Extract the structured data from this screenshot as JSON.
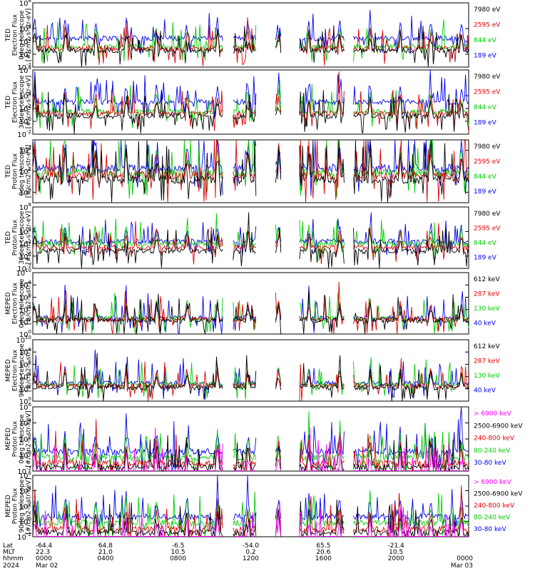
{
  "chart_data": [
    {
      "type": "line",
      "ylabel": [
        "TED",
        "Electron Flux",
        "0deg telescope",
        "[#/cm2-s-str-eV]"
      ],
      "y_ticks": [
        {
          "base": "10",
          "exp": "8"
        },
        {
          "base": "10",
          "exp": "4"
        },
        {
          "base": "10",
          "exp": "2"
        },
        {
          "base": "10",
          "exp": "0"
        },
        {
          "base": "10",
          "exp": "-2"
        }
      ],
      "ylim_log10": [
        -2,
        8
      ],
      "log_scale": true,
      "series": [
        {
          "name": "7980 eV",
          "color": "#000000",
          "level": 0.6
        },
        {
          "name": "2595 eV",
          "color": "#dd0000",
          "level": 0.9
        },
        {
          "name": "844 eV",
          "color": "#00cc00",
          "level": 1.2
        },
        {
          "name": "189 eV",
          "color": "#0000ee",
          "level": 2.5
        }
      ]
    },
    {
      "type": "line",
      "ylabel": [
        "TED",
        "Electron Flux",
        "30deg telescope",
        "[#/cm2-s-str-eV]"
      ],
      "y_ticks": [
        {
          "base": "10",
          "exp": "8"
        },
        {
          "base": "10",
          "exp": "4"
        },
        {
          "base": "10",
          "exp": "2"
        },
        {
          "base": "10",
          "exp": "0"
        },
        {
          "base": "10",
          "exp": "-2"
        }
      ],
      "ylim_log10": [
        -2,
        8
      ],
      "log_scale": true,
      "series": [
        {
          "name": "7980 eV",
          "color": "#000000",
          "level": 0.8
        },
        {
          "name": "2595 eV",
          "color": "#dd0000",
          "level": 1.2
        },
        {
          "name": "844 eV",
          "color": "#00cc00",
          "level": 1.5
        },
        {
          "name": "189 eV",
          "color": "#0000ee",
          "level": 3.0
        }
      ]
    },
    {
      "type": "line",
      "ylabel": [
        "TED",
        "Proton Flux",
        "0deg telescope",
        "[#/cm2-s-str-eV]"
      ],
      "y_ticks": [
        {
          "base": "10",
          "exp": "4"
        },
        {
          "base": "10",
          "exp": "2"
        },
        {
          "base": "10",
          "exp": "0"
        }
      ],
      "ylim_log10": [
        -1,
        5
      ],
      "log_scale": true,
      "series": [
        {
          "name": "7980 eV",
          "color": "#000000",
          "level": 1.2
        },
        {
          "name": "2595 eV",
          "color": "#dd0000",
          "level": 1.6
        },
        {
          "name": "844 eV",
          "color": "#00cc00",
          "level": 1.8
        },
        {
          "name": "189 eV",
          "color": "#0000ee",
          "level": 2.3
        }
      ]
    },
    {
      "type": "line",
      "ylabel": [
        "TED",
        "Proton Flux",
        "30deg telescope",
        "[#/cm2-s-str-eV]"
      ],
      "y_ticks": [
        {
          "base": "10",
          "exp": "8"
        },
        {
          "base": "10",
          "exp": "4"
        },
        {
          "base": "10",
          "exp": "2"
        },
        {
          "base": "10",
          "exp": "0"
        },
        {
          "base": "10",
          "exp": "-2"
        }
      ],
      "ylim_log10": [
        -2,
        8
      ],
      "log_scale": true,
      "series": [
        {
          "name": "7980 eV",
          "color": "#000000",
          "level": 0.8
        },
        {
          "name": "2595 eV",
          "color": "#dd0000",
          "level": 1.4
        },
        {
          "name": "844 eV",
          "color": "#00cc00",
          "level": 2.0
        },
        {
          "name": "189 eV",
          "color": "#0000ee",
          "level": 2.4
        }
      ]
    },
    {
      "type": "line",
      "ylabel": [
        "MEPED",
        "Electron Flux",
        "0deg telescope",
        "[#/cm2-s-str]"
      ],
      "y_ticks": [
        {
          "base": "10",
          "exp": "10"
        },
        {
          "base": "10",
          "exp": "8"
        },
        {
          "base": "10",
          "exp": "6"
        },
        {
          "base": "10",
          "exp": "4"
        },
        {
          "base": "10",
          "exp": "2"
        },
        {
          "base": "10",
          "exp": "0"
        }
      ],
      "ylim_log10": [
        0,
        10
      ],
      "log_scale": true,
      "series": [
        {
          "name": "612 keV",
          "color": "#000000",
          "level": 2.2
        },
        {
          "name": "287 keV",
          "color": "#dd0000",
          "level": 2.4
        },
        {
          "name": "130 keV",
          "color": "#00cc00",
          "level": 2.5
        },
        {
          "name": "40 keV",
          "color": "#0000ee",
          "level": 2.6
        }
      ]
    },
    {
      "type": "line",
      "ylabel": [
        "MEPED",
        "Electron Flux",
        "90deg telescope",
        "[#/cm2-s-str]"
      ],
      "y_ticks": [
        {
          "base": "10",
          "exp": "10"
        },
        {
          "base": "10",
          "exp": "8"
        },
        {
          "base": "10",
          "exp": "6"
        },
        {
          "base": "10",
          "exp": "4"
        },
        {
          "base": "10",
          "exp": "2"
        },
        {
          "base": "10",
          "exp": "0"
        }
      ],
      "ylim_log10": [
        0,
        10
      ],
      "log_scale": true,
      "series": [
        {
          "name": "612 keV",
          "color": "#000000",
          "level": 2.2
        },
        {
          "name": "287 keV",
          "color": "#dd0000",
          "level": 2.5
        },
        {
          "name": "130 keV",
          "color": "#00cc00",
          "level": 2.7
        },
        {
          "name": "40 keV",
          "color": "#0000ee",
          "level": 2.9
        }
      ]
    },
    {
      "type": "line",
      "ylabel": [
        "MEPED",
        "Proton Flux",
        "0deg telescope",
        "[#/cm2-s-str-keV]"
      ],
      "y_ticks": [
        {
          "base": "10",
          "exp": "6"
        },
        {
          "base": "10",
          "exp": "4"
        },
        {
          "base": "10",
          "exp": "2"
        },
        {
          "base": "10",
          "exp": "0"
        },
        {
          "base": "10",
          "exp": "-2"
        }
      ],
      "ylim_log10": [
        -2,
        6
      ],
      "log_scale": true,
      "series": [
        {
          "name": "> 6900 keV",
          "color": "#ff00ff",
          "level": -2.4
        },
        {
          "name": "2500-6900 keV",
          "color": "#000000",
          "level": -1.5
        },
        {
          "name": "240-800 keV",
          "color": "#dd0000",
          "level": -1.0
        },
        {
          "name": "80-240 keV",
          "color": "#00cc00",
          "level": -0.3
        },
        {
          "name": "30-80 keV",
          "color": "#0000ee",
          "level": 0.4
        }
      ]
    },
    {
      "type": "line",
      "ylabel": [
        "MEPED",
        "Proton Flux",
        "90deg telescope",
        "[#/cm2-s-str-keV]"
      ],
      "y_ticks": [
        {
          "base": "10",
          "exp": "6"
        },
        {
          "base": "10",
          "exp": "4"
        },
        {
          "base": "10",
          "exp": "2"
        },
        {
          "base": "10",
          "exp": "0"
        },
        {
          "base": "10",
          "exp": "-2"
        }
      ],
      "ylim_log10": [
        -2,
        6
      ],
      "log_scale": true,
      "series": [
        {
          "name": "> 6900 keV",
          "color": "#ff00ff",
          "level": -2.4
        },
        {
          "name": "2500-6900 keV",
          "color": "#000000",
          "level": -1.5
        },
        {
          "name": "240-800 keV",
          "color": "#dd0000",
          "level": -1.0
        },
        {
          "name": "80-240 keV",
          "color": "#00cc00",
          "level": -0.2
        },
        {
          "name": "30-80 keV",
          "color": "#0000ee",
          "level": 0.6
        }
      ]
    }
  ],
  "x_axis": {
    "row_labels": [
      "Lat",
      "MLT",
      "hhmm",
      "2024"
    ],
    "ticks": [
      {
        "frac": 0.0,
        "lat": "-64.4",
        "mlt": "22.3",
        "hhmm": "0000",
        "date": "Mar 02"
      },
      {
        "frac": 0.1667,
        "lat": "64.8",
        "mlt": "21.0",
        "hhmm": "0400",
        "date": ""
      },
      {
        "frac": 0.3333,
        "lat": "-6.5",
        "mlt": "10.5",
        "hhmm": "0800",
        "date": ""
      },
      {
        "frac": 0.5,
        "lat": "-54.0",
        "mlt": "0.2",
        "hhmm": "1200",
        "date": ""
      },
      {
        "frac": 0.6667,
        "lat": "65.5",
        "mlt": "20.6",
        "hhmm": "1600",
        "date": ""
      },
      {
        "frac": 0.8333,
        "lat": "-21.4",
        "mlt": "10.5",
        "hhmm": "2000",
        "date": ""
      },
      {
        "frac": 1.0,
        "lat": "",
        "mlt": "",
        "hhmm": "0000",
        "date": "Mar 03"
      }
    ]
  }
}
